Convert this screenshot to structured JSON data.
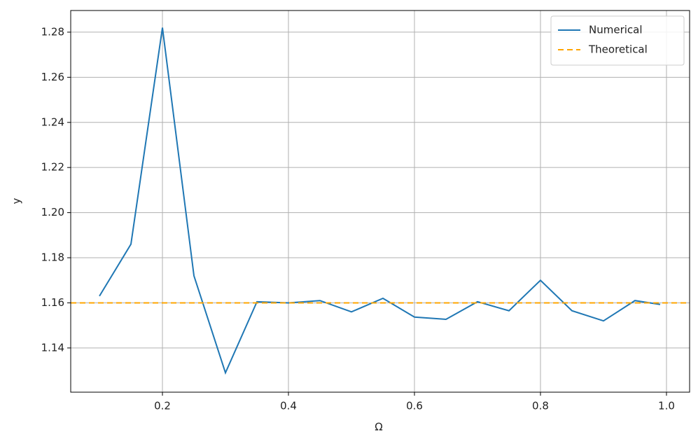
{
  "chart_data": {
    "type": "line",
    "xlabel": "Ω",
    "ylabel": "y",
    "x": [
      0.1,
      0.15,
      0.2,
      0.25,
      0.3,
      0.35,
      0.4,
      0.45,
      0.5,
      0.55,
      0.6,
      0.65,
      0.7,
      0.75,
      0.8,
      0.85,
      0.9,
      0.95,
      0.99
    ],
    "series": [
      {
        "name": "Numerical",
        "color": "#1f77b4",
        "values": [
          1.163,
          1.186,
          1.282,
          1.172,
          1.129,
          1.1605,
          1.16,
          1.161,
          1.156,
          1.162,
          1.1537,
          1.1527,
          1.1605,
          1.1565,
          1.17,
          1.1565,
          1.152,
          1.161,
          1.1593
        ]
      },
      {
        "name": "Theoretical",
        "color": "#ffa500",
        "linestyle": "dashed",
        "value": 1.16
      }
    ],
    "xlim": [
      0.0544,
      1.0367
    ],
    "ylim": [
      1.1204,
      1.2896
    ],
    "xticks": [
      0.2,
      0.4,
      0.6,
      0.8,
      {
        "value": 1,
        "label": "1.0"
      }
    ],
    "yticks": [
      1.14,
      1.16,
      1.18,
      {
        "value": 1.2,
        "label": "1.20"
      },
      1.22,
      1.24,
      1.26,
      1.28
    ],
    "grid": true,
    "legend": "upper right"
  }
}
